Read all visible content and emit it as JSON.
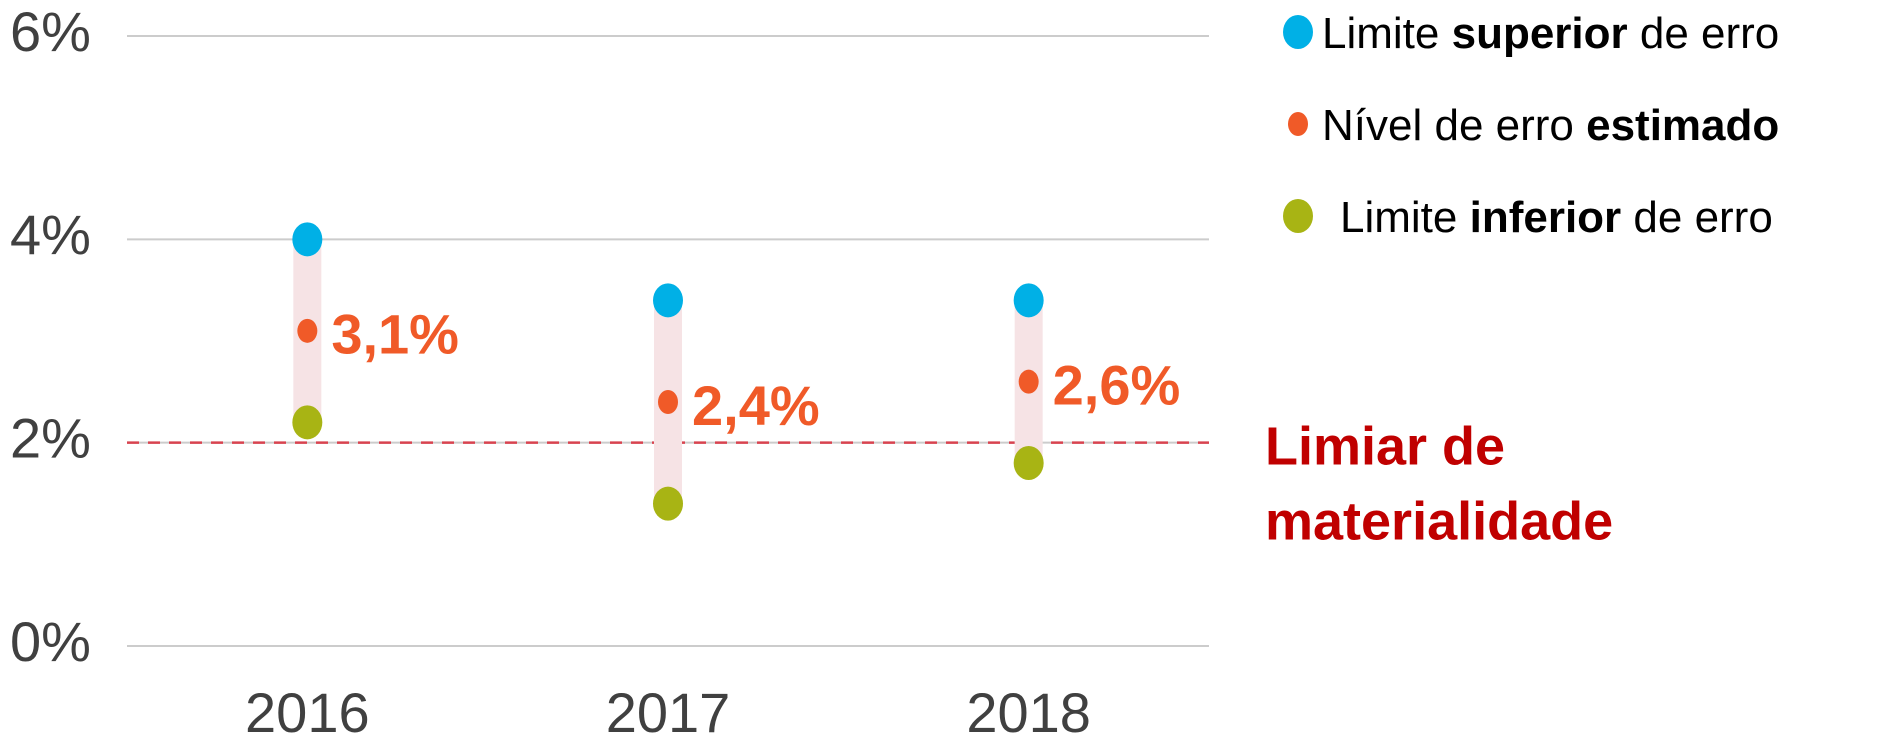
{
  "chart_data": {
    "type": "range_dot",
    "categories": [
      "2016",
      "2017",
      "2018"
    ],
    "series": [
      {
        "name_parts": [
          "Limite ",
          "superior",
          " de erro"
        ],
        "color": "#00b0e6",
        "role": "upper",
        "values": [
          4.0,
          3.4,
          3.4
        ]
      },
      {
        "name_parts": [
          "Nível de erro ",
          "estimado"
        ],
        "color": "#f05a28",
        "role": "estimate",
        "values": [
          3.1,
          2.4,
          2.6
        ],
        "value_labels": [
          "3,1%",
          "2,4%",
          "2,6%"
        ]
      },
      {
        "name_parts": [
          "Limite ",
          "inferior",
          " de erro"
        ],
        "color": "#a8b414",
        "role": "lower",
        "values": [
          2.2,
          1.4,
          1.8
        ]
      }
    ],
    "range_color": "#f6e3e5",
    "threshold": {
      "value": 2,
      "label_lines": [
        "Limiar de",
        "materialidade"
      ],
      "color": "#c00000"
    },
    "ylim": [
      0,
      6
    ],
    "yticks": [
      {
        "value": 0,
        "label": "0%"
      },
      {
        "value": 2,
        "label": "2%"
      },
      {
        "value": 4,
        "label": "4%"
      },
      {
        "value": 6,
        "label": "6%"
      }
    ],
    "grid": true,
    "legend": "top-right"
  }
}
